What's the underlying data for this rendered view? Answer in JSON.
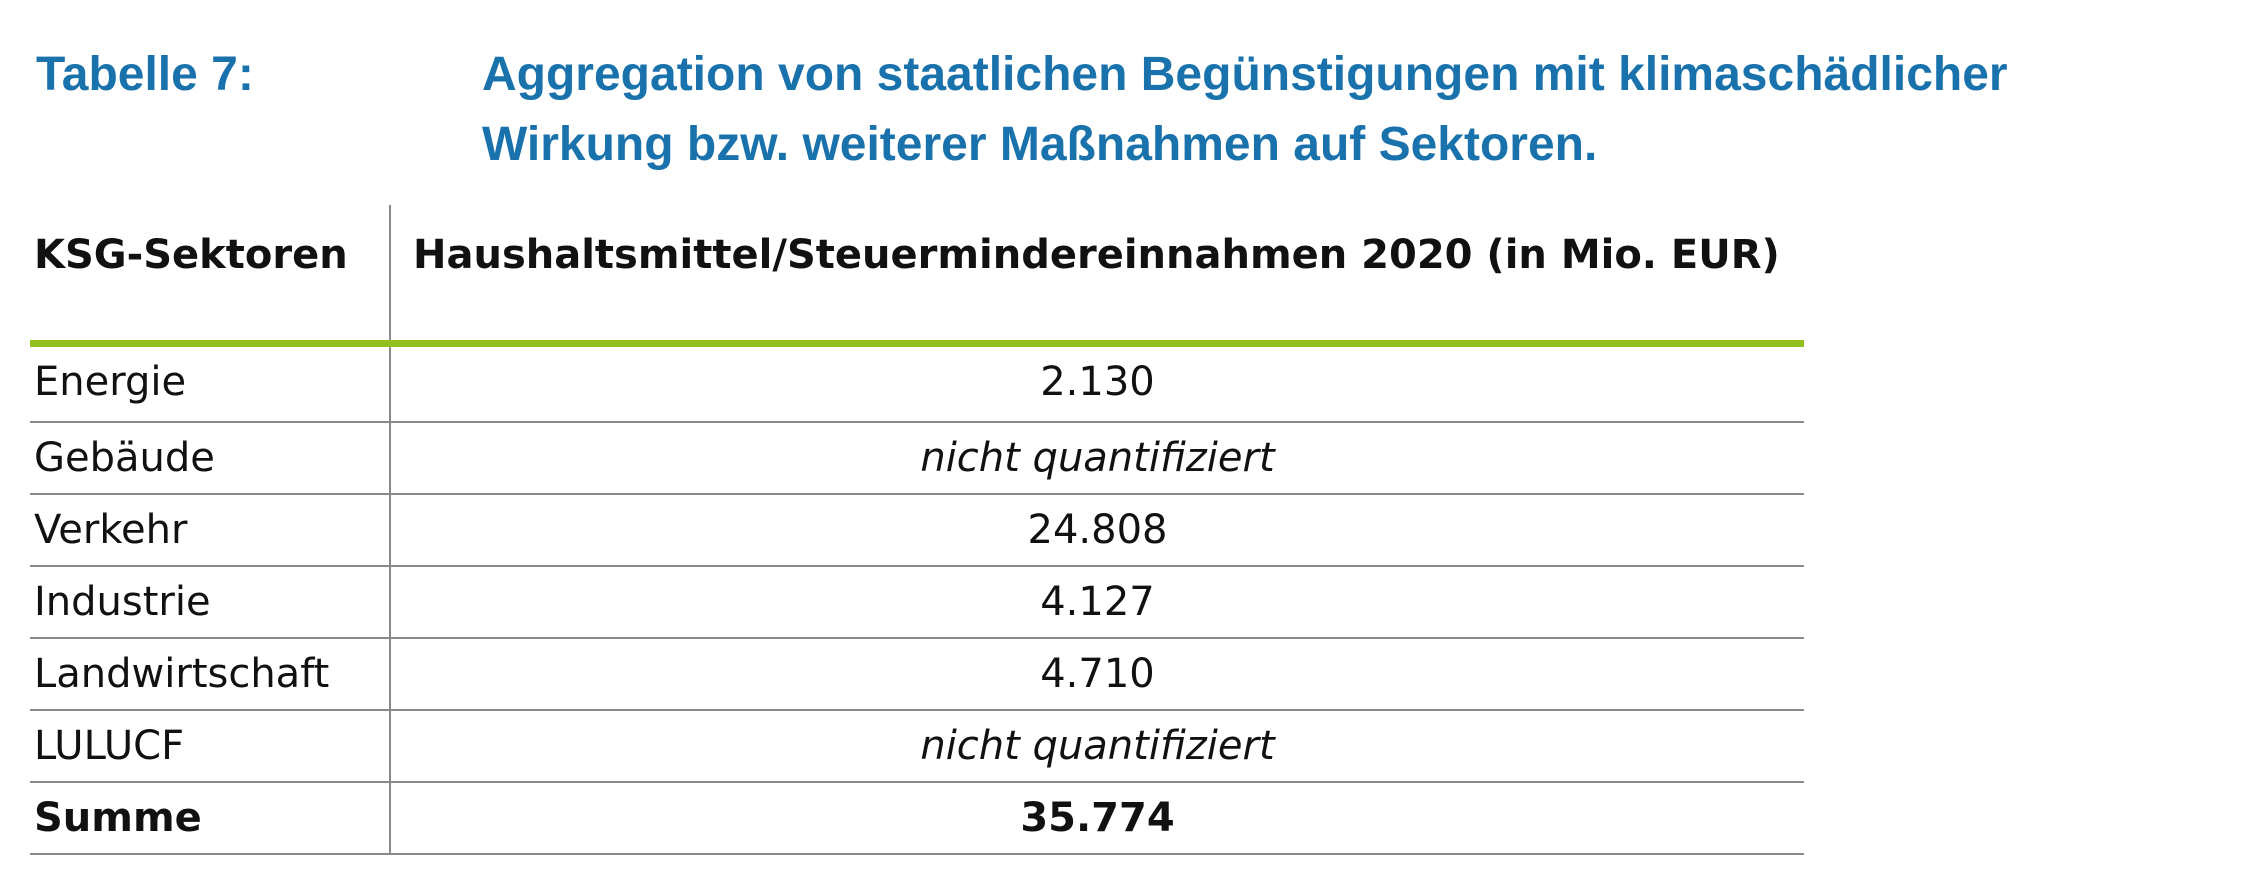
{
  "caption": {
    "label": "Tabelle 7:",
    "text": "Aggregation von staatlichen Begünstigungen mit klimaschädlicher Wirkung bzw. weiterer Maßnahmen auf Sektoren.",
    "color": "#1a72ad"
  },
  "table": {
    "header": {
      "sector": "KSG-Sektoren",
      "value": "Haushaltsmittel/Steuermindereinnahmen 2020 (in Mio. EUR)"
    },
    "accent_color": "#93c01f",
    "rows": [
      {
        "sector": "Energie",
        "value": "2.130"
      },
      {
        "sector": "Gebäude",
        "value": "nicht quantifiziert"
      },
      {
        "sector": "Verkehr",
        "value": "24.808"
      },
      {
        "sector": "Industrie",
        "value": "4.127"
      },
      {
        "sector": "Landwirtschaft",
        "value": "4.710"
      },
      {
        "sector": "LULUCF",
        "value": "nicht quantifiziert"
      }
    ],
    "total": {
      "sector": "Summe",
      "value": "35.774"
    }
  }
}
